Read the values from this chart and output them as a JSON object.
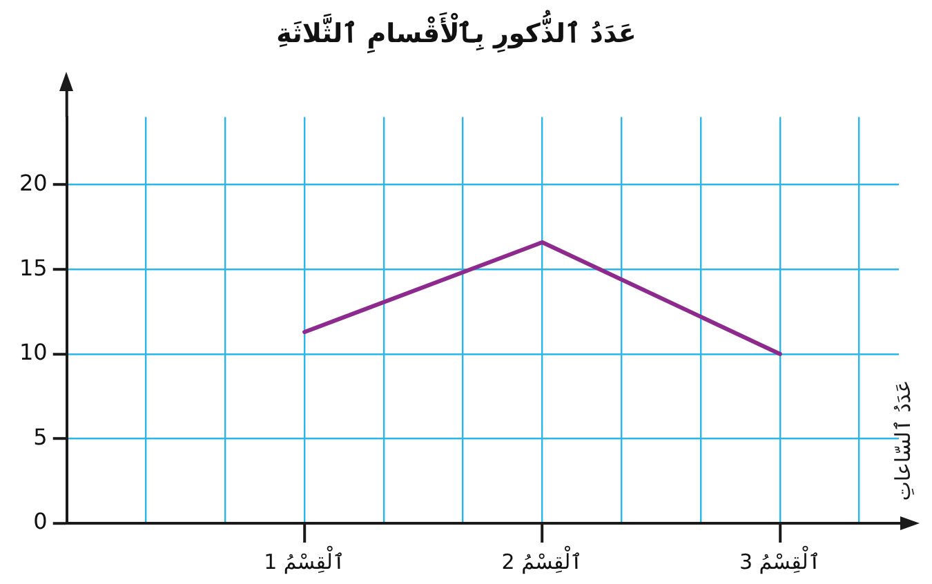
{
  "chart_data": {
    "type": "line",
    "title": "عَدَدُ ٱلذُّكورِ بِٱلْأَقْسامِ ٱلثَّلاثَةِ",
    "ylabel": "عَدَدُ ٱلسّاعاتِ",
    "categories": [
      "ٱلْقِسْمُ 1",
      "ٱلْقِسْمُ 2",
      "ٱلْقِسْمُ 3"
    ],
    "series": [
      {
        "color": "#8e2a8e",
        "values": [
          11.3,
          16.6,
          10
        ]
      }
    ],
    "ylim": [
      0,
      24
    ],
    "yticks": [
      0,
      5,
      10,
      15,
      20
    ],
    "grid": true,
    "legend": false,
    "marker": "none",
    "line_style": "solid"
  }
}
